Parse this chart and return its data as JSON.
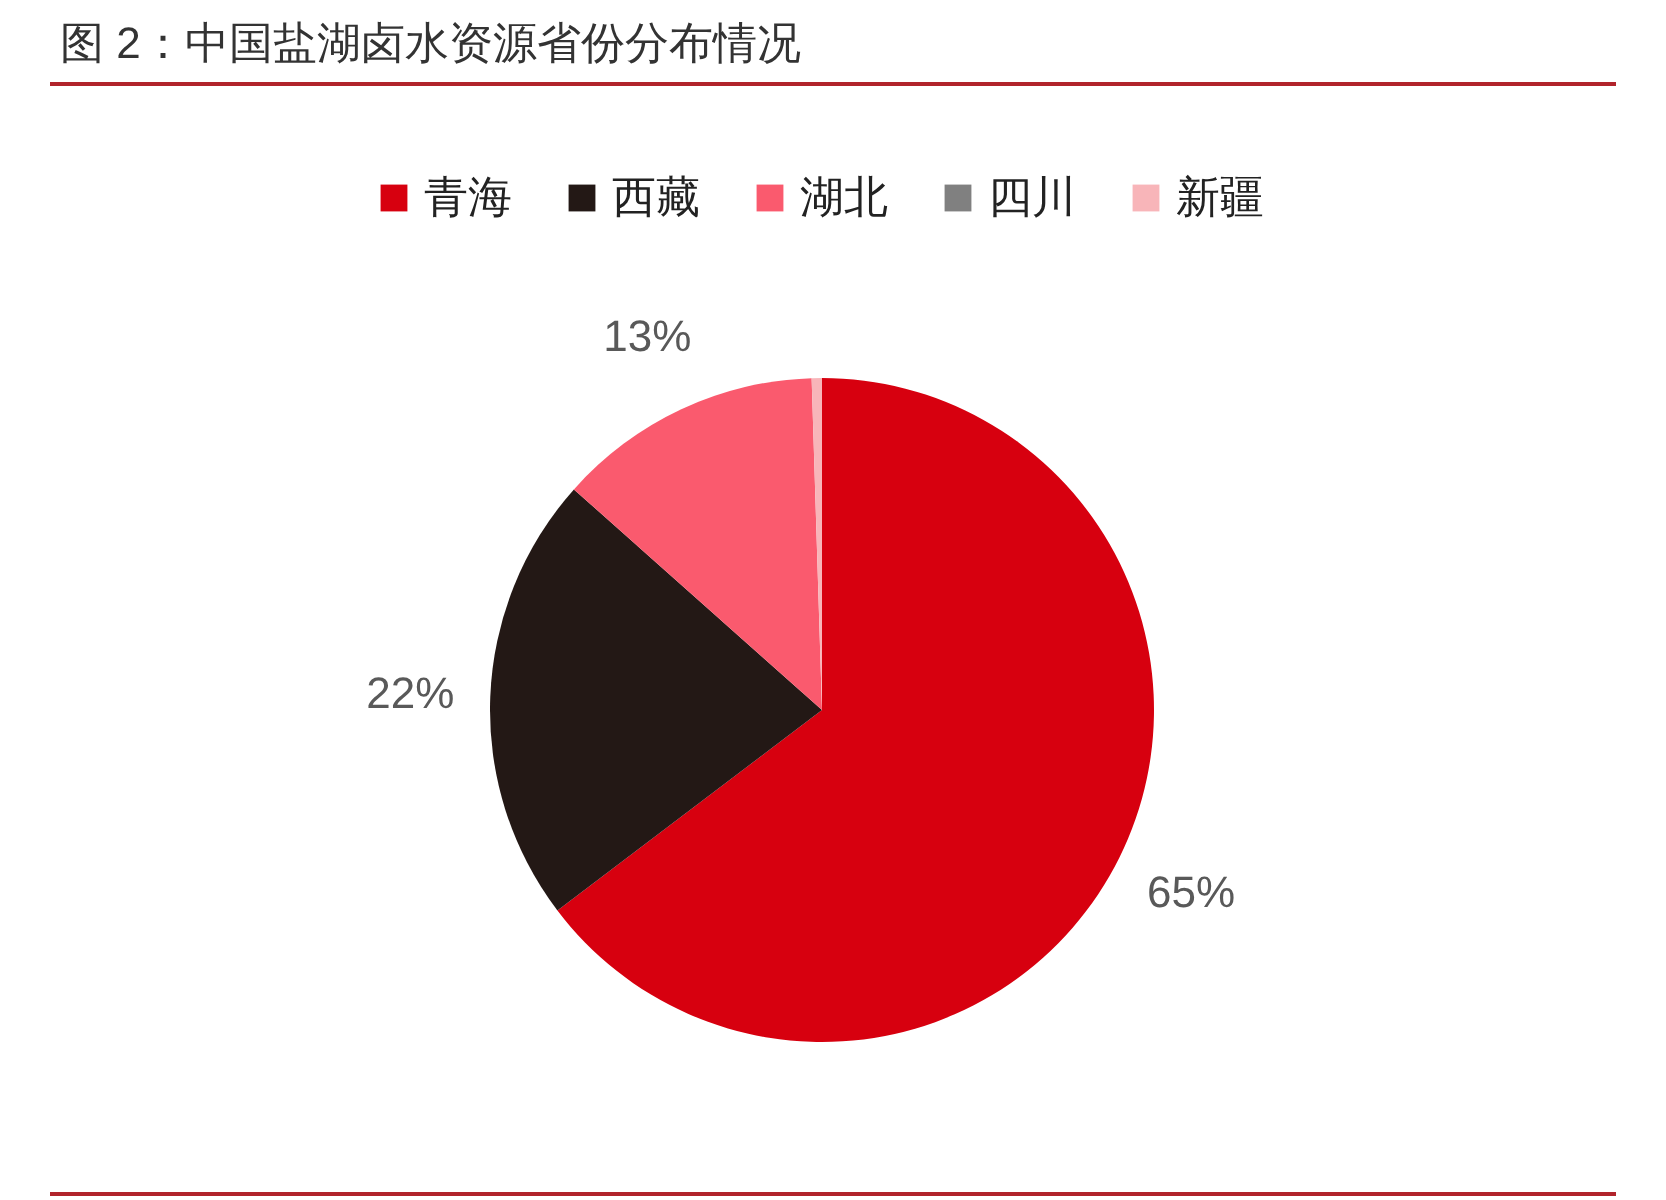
{
  "chart_data": {
    "type": "pie",
    "title": "图 2：中国盐湖卤水资源省份分布情况",
    "categories": [
      "青海",
      "西藏",
      "湖北",
      "四川",
      "新疆"
    ],
    "values": [
      65,
      22,
      13,
      null,
      0.5
    ],
    "colors": [
      "#d7000f",
      "#231815",
      "#fa5a6e",
      "#808080",
      "#f8b5b9"
    ],
    "value_labels": [
      "65%",
      "22%",
      "13%",
      null,
      null
    ],
    "legend": "top"
  }
}
